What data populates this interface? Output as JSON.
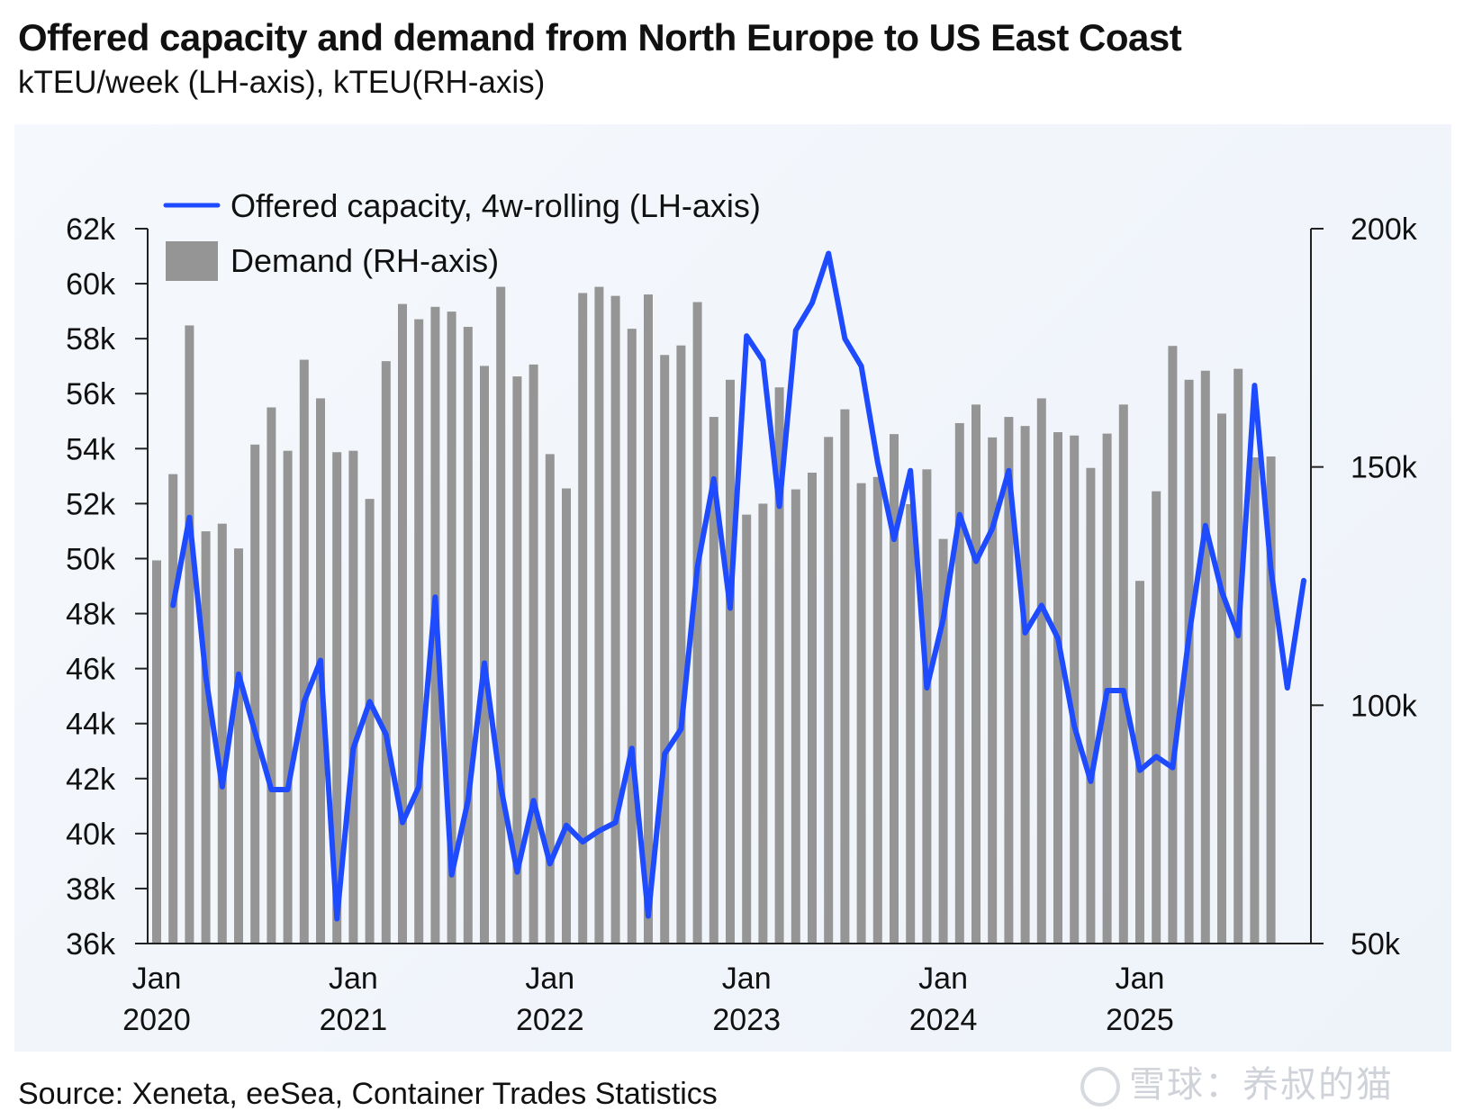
{
  "header": {
    "title": "Offered capacity and demand from North Europe to US East Coast",
    "subtitle": "kTEU/week (LH-axis), kTEU(RH-axis)"
  },
  "footer": {
    "source": "Source: Xeneta, eeSea, Container Trades Statistics",
    "watermark": "雪球：养叔的猫"
  },
  "colors": {
    "line": "#1f4bff",
    "bars": "#959595",
    "panel": "#f2f6fb",
    "axis": "#222222"
  },
  "chart_data": {
    "type": "bar+line",
    "title": "Offered capacity and demand from North Europe to US East Coast",
    "subtitle": "kTEU/week (LH-axis), kTEU(RH-axis)",
    "legend_position": "top-left",
    "grid": false,
    "x_start": "2020-01",
    "x_ticks": [
      {
        "month_index": 0,
        "line1": "Jan",
        "line2": "2020"
      },
      {
        "month_index": 12,
        "line1": "Jan",
        "line2": "2021"
      },
      {
        "month_index": 24,
        "line1": "Jan",
        "line2": "2022"
      },
      {
        "month_index": 36,
        "line1": "Jan",
        "line2": "2023"
      },
      {
        "month_index": 48,
        "line1": "Jan",
        "line2": "2024"
      },
      {
        "month_index": 60,
        "line1": "Jan",
        "line2": "2025"
      }
    ],
    "x_range_months": [
      0,
      71
    ],
    "left_axis": {
      "label": "kTEU/week",
      "range": [
        36000,
        62000
      ],
      "ticks": [
        36000,
        38000,
        40000,
        42000,
        44000,
        46000,
        48000,
        50000,
        52000,
        54000,
        56000,
        58000,
        60000,
        62000
      ],
      "tick_labels": [
        "36k",
        "38k",
        "40k",
        "42k",
        "44k",
        "46k",
        "48k",
        "50k",
        "52k",
        "54k",
        "56k",
        "58k",
        "60k",
        "62k"
      ]
    },
    "right_axis": {
      "label": "kTEU",
      "range": [
        50000,
        200000
      ],
      "ticks": [
        50000,
        100000,
        150000,
        200000
      ],
      "tick_labels": [
        "50k",
        "100k",
        "150k",
        "200k"
      ]
    },
    "series": [
      {
        "name": "Offered capacity, 4w-rolling (LH-axis)",
        "kind": "line",
        "axis": "left",
        "start_month_index": 1,
        "values": [
          48300,
          51500,
          45700,
          41700,
          45800,
          43700,
          41600,
          41600,
          44800,
          46300,
          36900,
          43100,
          44800,
          43600,
          40400,
          41700,
          48600,
          38500,
          41200,
          46200,
          41700,
          38600,
          41200,
          38900,
          40300,
          39700,
          40100,
          40400,
          43100,
          37000,
          42900,
          43800,
          49700,
          52900,
          48200,
          58100,
          57200,
          51900,
          58300,
          59300,
          61100,
          58000,
          57000,
          53500,
          50700,
          53200,
          45300,
          47800,
          51600,
          49900,
          51100,
          53200,
          47300,
          48300,
          47100,
          43900,
          41900,
          45200,
          45200,
          42300,
          42800,
          42400,
          47200,
          51200,
          48800,
          47200,
          56300,
          49600,
          45300,
          49200
        ]
      },
      {
        "name": "Demand (RH-axis)",
        "kind": "bar",
        "axis": "right",
        "start_month_index": 0,
        "values": [
          130400,
          148500,
          179700,
          136500,
          138100,
          132900,
          154700,
          162500,
          153400,
          172500,
          164400,
          153100,
          153400,
          143300,
          172200,
          184200,
          181000,
          183600,
          182600,
          179400,
          171200,
          187800,
          169000,
          171500,
          152700,
          145500,
          186500,
          187800,
          185900,
          179000,
          186200,
          173500,
          175500,
          184600,
          160500,
          168300,
          140000,
          142300,
          166700,
          145300,
          148800,
          156300,
          162100,
          146600,
          147900,
          156900,
          142200,
          149500,
          134900,
          159200,
          163100,
          156200,
          160500,
          158600,
          164400,
          157300,
          156600,
          149800,
          157000,
          163100,
          126100,
          144900,
          175400,
          168300,
          170200,
          161200,
          170600,
          152000,
          152200
        ]
      }
    ]
  }
}
